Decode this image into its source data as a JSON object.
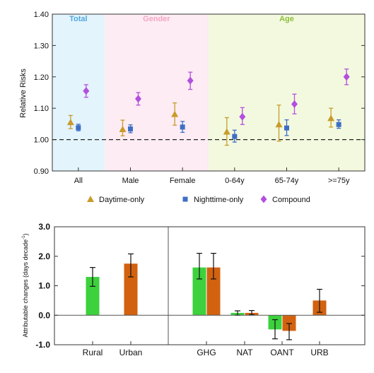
{
  "chart_data": [
    {
      "type": "scatter",
      "ylabel": "Relative Risks",
      "ylim": [
        0.9,
        1.4
      ],
      "yticks": [
        "0.90",
        "1.00",
        "1.10",
        "1.20",
        "1.30",
        "1.40"
      ],
      "reference_line": 1.0,
      "groups": [
        {
          "label": "Total",
          "color": "#4FA8E0",
          "background": "#E3F4FC",
          "categories": [
            "All"
          ]
        },
        {
          "label": "Gender",
          "color": "#F4A6C0",
          "background": "#FDECF3",
          "categories": [
            "Male",
            "Female"
          ]
        },
        {
          "label": "Age",
          "color": "#8DBF3A",
          "background": "#F3F9DF",
          "categories": [
            "0-64y",
            "65-74y",
            ">=75y"
          ]
        }
      ],
      "categories": [
        "All",
        "Male",
        "Female",
        "0-64y",
        "65-74y",
        ">=75y"
      ],
      "series": [
        {
          "name": "Daytime-only",
          "marker": "triangle",
          "color": "#C89B2A",
          "values": [
            1.055,
            1.033,
            1.081,
            1.025,
            1.048,
            1.068
          ],
          "lower": [
            1.035,
            1.012,
            1.046,
            0.982,
            0.995,
            1.04
          ],
          "upper": [
            1.077,
            1.062,
            1.117,
            1.07,
            1.11,
            1.1
          ]
        },
        {
          "name": "Nighttime-only",
          "marker": "square",
          "color": "#3F6FC4",
          "values": [
            1.038,
            1.034,
            1.04,
            1.01,
            1.037,
            1.048
          ],
          "lower": [
            1.028,
            1.022,
            1.023,
            0.992,
            1.013,
            1.036
          ],
          "upper": [
            1.049,
            1.047,
            1.058,
            1.03,
            1.063,
            1.063
          ]
        },
        {
          "name": "Compound",
          "marker": "diamond",
          "color": "#B34FE0",
          "values": [
            1.155,
            1.13,
            1.188,
            1.073,
            1.113,
            1.2
          ],
          "lower": [
            1.135,
            1.11,
            1.16,
            1.048,
            1.082,
            1.175
          ],
          "upper": [
            1.175,
            1.15,
            1.215,
            1.102,
            1.145,
            1.225
          ]
        }
      ]
    },
    {
      "type": "bar",
      "ylabel": "Attributable changes (days decade",
      "ylabel_sup": "-1",
      "ylabel_close": ")",
      "ylim": [
        -1.0,
        3.0
      ],
      "yticks": [
        "-1.0",
        "0.0",
        "1.0",
        "2.0",
        "3.0"
      ],
      "panels": [
        {
          "categories": [
            "Rural",
            "Urban"
          ]
        },
        {
          "categories": [
            "GHG",
            "NAT",
            "OANT",
            "URB"
          ]
        }
      ],
      "series": [
        {
          "name": "Rural",
          "color": "#3DD13D"
        },
        {
          "name": "Urban",
          "color": "#D2620F"
        }
      ],
      "bars": [
        {
          "category": "Rural",
          "series": "Rural",
          "value": 1.3,
          "lower": 0.98,
          "upper": 1.62
        },
        {
          "category": "Urban",
          "series": "Urban",
          "value": 1.75,
          "lower": 1.3,
          "upper": 2.08
        },
        {
          "category": "GHG",
          "series": "Rural",
          "value": 1.62,
          "lower": 1.23,
          "upper": 2.1
        },
        {
          "category": "GHG",
          "series": "Urban",
          "value": 1.62,
          "lower": 1.23,
          "upper": 2.1
        },
        {
          "category": "NAT",
          "series": "Rural",
          "value": 0.08,
          "lower": 0.0,
          "upper": 0.15
        },
        {
          "category": "NAT",
          "series": "Urban",
          "value": 0.08,
          "lower": 0.02,
          "upper": 0.16
        },
        {
          "category": "OANT",
          "series": "Rural",
          "value": -0.48,
          "lower": -0.8,
          "upper": -0.15
        },
        {
          "category": "OANT",
          "series": "Urban",
          "value": -0.53,
          "lower": -0.83,
          "upper": -0.28
        },
        {
          "category": "URB",
          "series": "Urban",
          "value": 0.5,
          "lower": 0.1,
          "upper": 0.88
        }
      ]
    }
  ]
}
